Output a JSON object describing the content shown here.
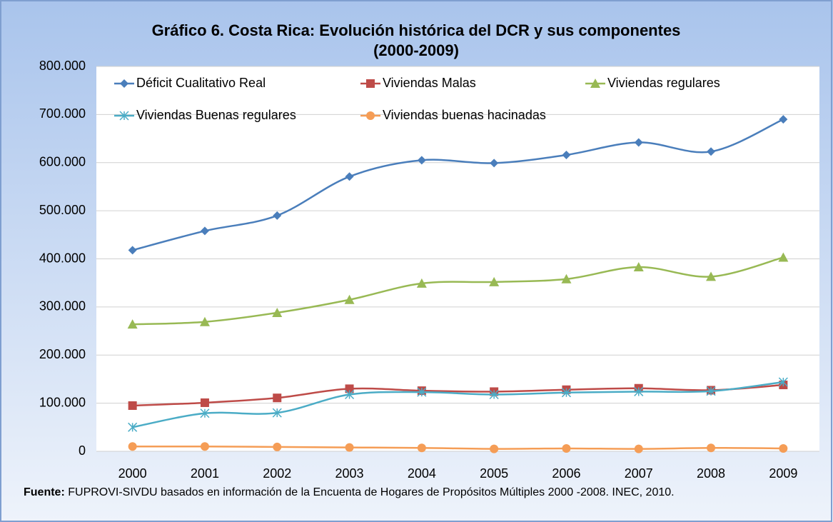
{
  "chart_data": {
    "type": "line",
    "title": [
      "Gráfico 6. Costa Rica: Evolución histórica del DCR y sus componentes",
      "(2000-2009)"
    ],
    "categories": [
      "2000",
      "2001",
      "2002",
      "2003",
      "2004",
      "2005",
      "2006",
      "2007",
      "2008",
      "2009"
    ],
    "series": [
      {
        "name": "Déficit Cualitativo Real",
        "color": "#4a7ebb",
        "marker": "diamond",
        "values": [
          418000,
          458000,
          490000,
          571000,
          605000,
          599000,
          616000,
          642000,
          623000,
          690000
        ]
      },
      {
        "name": "Viviendas Malas",
        "color": "#be4b48",
        "marker": "square",
        "values": [
          95000,
          101000,
          111000,
          130000,
          126000,
          124000,
          128000,
          131000,
          127000,
          138000
        ]
      },
      {
        "name": "Viviendas regulares",
        "color": "#98b954",
        "marker": "triangle",
        "values": [
          264000,
          269000,
          288000,
          315000,
          349000,
          352000,
          358000,
          383000,
          363000,
          403000
        ]
      },
      {
        "name": "Viviendas Buenas regulares",
        "color": "#4bacc6",
        "marker": "star",
        "values": [
          50000,
          79000,
          80000,
          118000,
          123000,
          118000,
          122000,
          124000,
          125000,
          144000
        ]
      },
      {
        "name": "Viviendas buenas hacinadas",
        "color": "#f59d56",
        "marker": "circle",
        "values": [
          10000,
          10000,
          9000,
          8000,
          7000,
          5000,
          6000,
          5000,
          7000,
          6000
        ]
      }
    ],
    "ylim": [
      0,
      800000
    ],
    "yticks": [
      0,
      {
        "value": 100000,
        "label": "100.000"
      },
      {
        "value": 200000,
        "label": "200.000"
      },
      {
        "value": 300000,
        "label": "300.000"
      },
      {
        "value": 400000,
        "label": "400.000"
      },
      {
        "value": 500000,
        "label": "500.000"
      },
      {
        "value": 600000,
        "label": "600.000"
      },
      {
        "value": 700000,
        "label": "700.000"
      },
      {
        "value": 800000,
        "label": "800.000"
      }
    ],
    "grid": true,
    "smooth": true,
    "legend": "top",
    "footnote": {
      "label": "Fuente:",
      "text": "FUPROVI-SIVDU basados en información de la Encuenta de Hogares  de Propósitos Múltiples 2000 -2008. INEC, 2010."
    }
  }
}
